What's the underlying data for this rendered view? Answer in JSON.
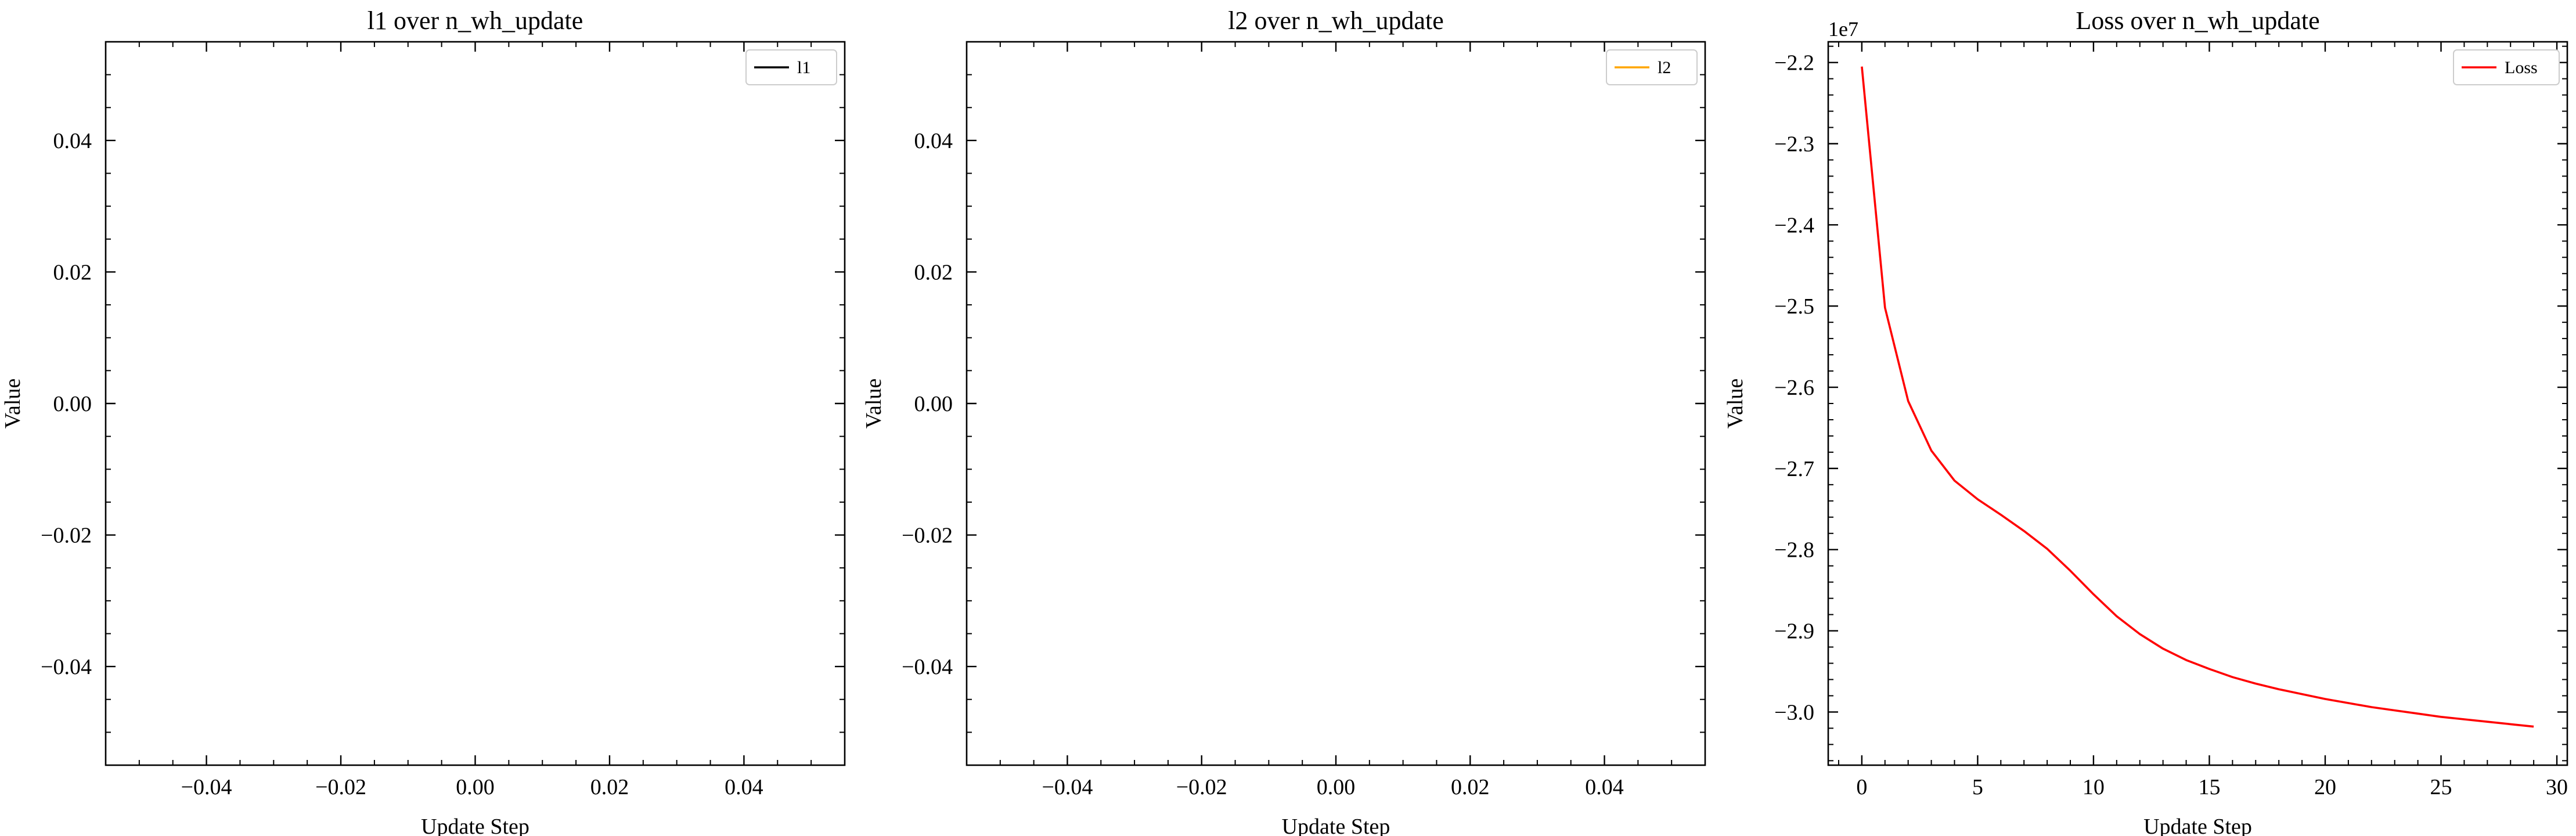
{
  "chart_data": [
    {
      "type": "line",
      "title": "l1 over n_wh_update",
      "xlabel": "Update Step",
      "ylabel": "Value",
      "xlim": [
        -0.055,
        0.055
      ],
      "ylim": [
        -0.055,
        0.055
      ],
      "xticks": [
        -0.04,
        -0.02,
        0.0,
        0.02,
        0.04
      ],
      "xtick_labels": [
        "−0.04",
        "−0.02",
        "0.00",
        "0.02",
        "0.04"
      ],
      "yticks": [
        -0.04,
        -0.02,
        0.0,
        0.02,
        0.04
      ],
      "ytick_labels": [
        "−0.04",
        "−0.02",
        "0.00",
        "0.02",
        "0.04"
      ],
      "x_minor_step": 0.005,
      "y_minor_step": 0.005,
      "legend_position": "top-right",
      "series": [
        {
          "name": "l1",
          "color": "#000000",
          "x": [],
          "y": []
        }
      ]
    },
    {
      "type": "line",
      "title": "l2 over n_wh_update",
      "xlabel": "Update Step",
      "ylabel": "Value",
      "xlim": [
        -0.055,
        0.055
      ],
      "ylim": [
        -0.055,
        0.055
      ],
      "xticks": [
        -0.04,
        -0.02,
        0.0,
        0.02,
        0.04
      ],
      "xtick_labels": [
        "−0.04",
        "−0.02",
        "0.00",
        "0.02",
        "0.04"
      ],
      "yticks": [
        -0.04,
        -0.02,
        0.0,
        0.02,
        0.04
      ],
      "ytick_labels": [
        "−0.04",
        "−0.02",
        "0.00",
        "0.02",
        "0.04"
      ],
      "x_minor_step": 0.005,
      "y_minor_step": 0.005,
      "legend_position": "top-right",
      "series": [
        {
          "name": "l2",
          "color": "#ffa500",
          "x": [],
          "y": []
        }
      ]
    },
    {
      "type": "line",
      "title": "Loss over n_wh_update",
      "xlabel": "Update Step",
      "ylabel": "Value",
      "y_offset_label": "1e7",
      "xlim": [
        -1.45,
        30.45
      ],
      "ylim": [
        -3.0655,
        -2.1745
      ],
      "xticks": [
        0,
        5,
        10,
        15,
        20,
        25,
        30
      ],
      "xtick_labels": [
        "0",
        "5",
        "10",
        "15",
        "20",
        "25",
        "30"
      ],
      "yticks": [
        -3.0,
        -2.9,
        -2.8,
        -2.7,
        -2.6,
        -2.5,
        -2.4,
        -2.3,
        -2.2
      ],
      "ytick_labels": [
        "−3.0",
        "−2.9",
        "−2.8",
        "−2.7",
        "−2.6",
        "−2.5",
        "−2.4",
        "−2.3",
        "−2.2"
      ],
      "x_minor_step": 1,
      "y_minor_step": 0.02,
      "legend_position": "top-right",
      "series": [
        {
          "name": "Loss",
          "color": "#ff0000",
          "x": [
            0,
            1,
            2,
            3,
            4,
            5,
            6,
            7,
            8,
            9,
            10,
            11,
            12,
            13,
            14,
            15,
            16,
            17,
            18,
            19,
            20,
            21,
            22,
            23,
            24,
            25,
            26,
            27,
            28,
            29
          ],
          "y": [
            -2.205,
            -2.502,
            -2.617,
            -2.678,
            -2.715,
            -2.738,
            -2.757,
            -2.777,
            -2.799,
            -2.826,
            -2.855,
            -2.882,
            -2.904,
            -2.922,
            -2.936,
            -2.947,
            -2.957,
            -2.965,
            -2.972,
            -2.978,
            -2.984,
            -2.989,
            -2.994,
            -2.998,
            -3.002,
            -3.006,
            -3.009,
            -3.012,
            -3.015,
            -3.018
          ]
        }
      ]
    }
  ]
}
